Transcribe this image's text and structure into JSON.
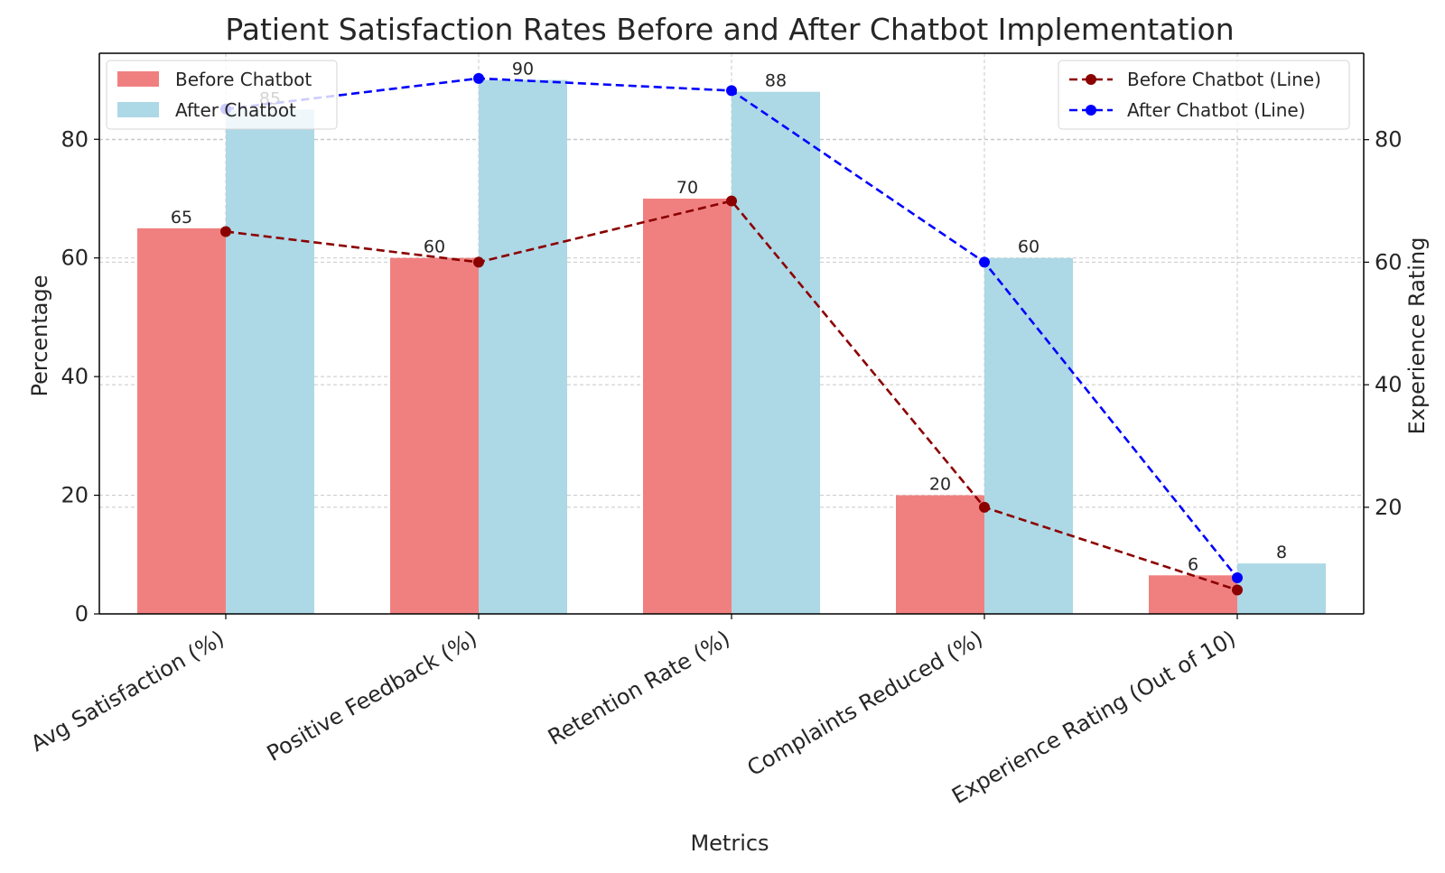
{
  "chart_data": {
    "type": "bar",
    "title": "Patient Satisfaction Rates Before and After Chatbot Implementation",
    "xlabel": "Metrics",
    "ylabel": "Percentage",
    "ylabel_right": "Experience Rating",
    "categories": [
      "Avg Satisfaction (%)",
      "Positive Feedback (%)",
      "Retention Rate (%)",
      "Complaints Reduced (%)",
      "Experience Rating (Out of 10)"
    ],
    "series": [
      {
        "name": "Before Chatbot",
        "kind": "bar",
        "axis": "left",
        "color": "#f08080",
        "values": [
          65,
          60,
          70,
          20,
          6.5
        ],
        "labels": [
          "65",
          "60",
          "70",
          "20",
          "6"
        ]
      },
      {
        "name": "After Chatbot",
        "kind": "bar",
        "axis": "left",
        "color": "#add8e6",
        "values": [
          85,
          90,
          88,
          60,
          8.5
        ],
        "labels": [
          "85",
          "90",
          "88",
          "60",
          "8"
        ]
      },
      {
        "name": "Before Chatbot (Line)",
        "kind": "line",
        "axis": "right",
        "color": "#8b0000",
        "values": [
          65,
          60,
          70,
          20,
          6.5
        ]
      },
      {
        "name": "After Chatbot (Line)",
        "kind": "line",
        "axis": "right",
        "color": "#0000ff",
        "values": [
          85,
          90,
          88,
          60,
          8.5
        ]
      }
    ],
    "ylim": [
      0,
      94.5
    ],
    "ylim_right": [
      2.6,
      94.1
    ],
    "yticks": [
      0,
      20,
      40,
      60,
      80
    ],
    "yticks_right": [
      20,
      40,
      60,
      80
    ],
    "grid": true,
    "legend_bars": "top-left",
    "legend_lines": "top-right"
  }
}
